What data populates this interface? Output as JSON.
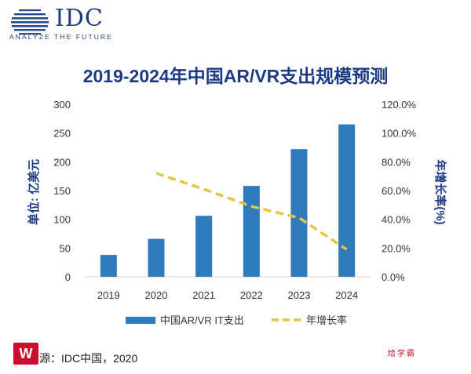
{
  "header": {
    "logo_text": "IDC",
    "tagline": "ANALYZE THE FUTURE"
  },
  "chart_data": {
    "type": "bar",
    "title": "2019-2024年中国AR/VR支出规模预测",
    "categories": [
      "2019",
      "2020",
      "2021",
      "2022",
      "2023",
      "2024"
    ],
    "series": [
      {
        "name": "中国AR/VR IT支出",
        "type": "bar",
        "axis": "left",
        "color": "#2f79bd",
        "values": [
          38,
          66,
          106,
          158,
          222,
          265
        ]
      },
      {
        "name": "年增长率",
        "type": "line",
        "axis": "right",
        "style": "dashed",
        "color": "#e3c53f",
        "values": [
          null,
          72.0,
          61.0,
          49.0,
          41.0,
          19.0
        ]
      }
    ],
    "y_left": {
      "label": "单位: 亿美元",
      "min": 0,
      "max": 300,
      "ticks": [
        "0",
        "50",
        "100",
        "150",
        "200",
        "250",
        "300"
      ]
    },
    "y_right": {
      "label": "年增长率(%)",
      "min": 0,
      "max": 120,
      "ticks": [
        "0.0%",
        "20.0%",
        "40.0%",
        "60.0%",
        "80.0%",
        "100.0%",
        "120.0%"
      ]
    },
    "grid": false,
    "legend_position": "bottom"
  },
  "footer": {
    "source": "源：IDC中国，2020",
    "badge": "W",
    "brand": "给学霸"
  }
}
